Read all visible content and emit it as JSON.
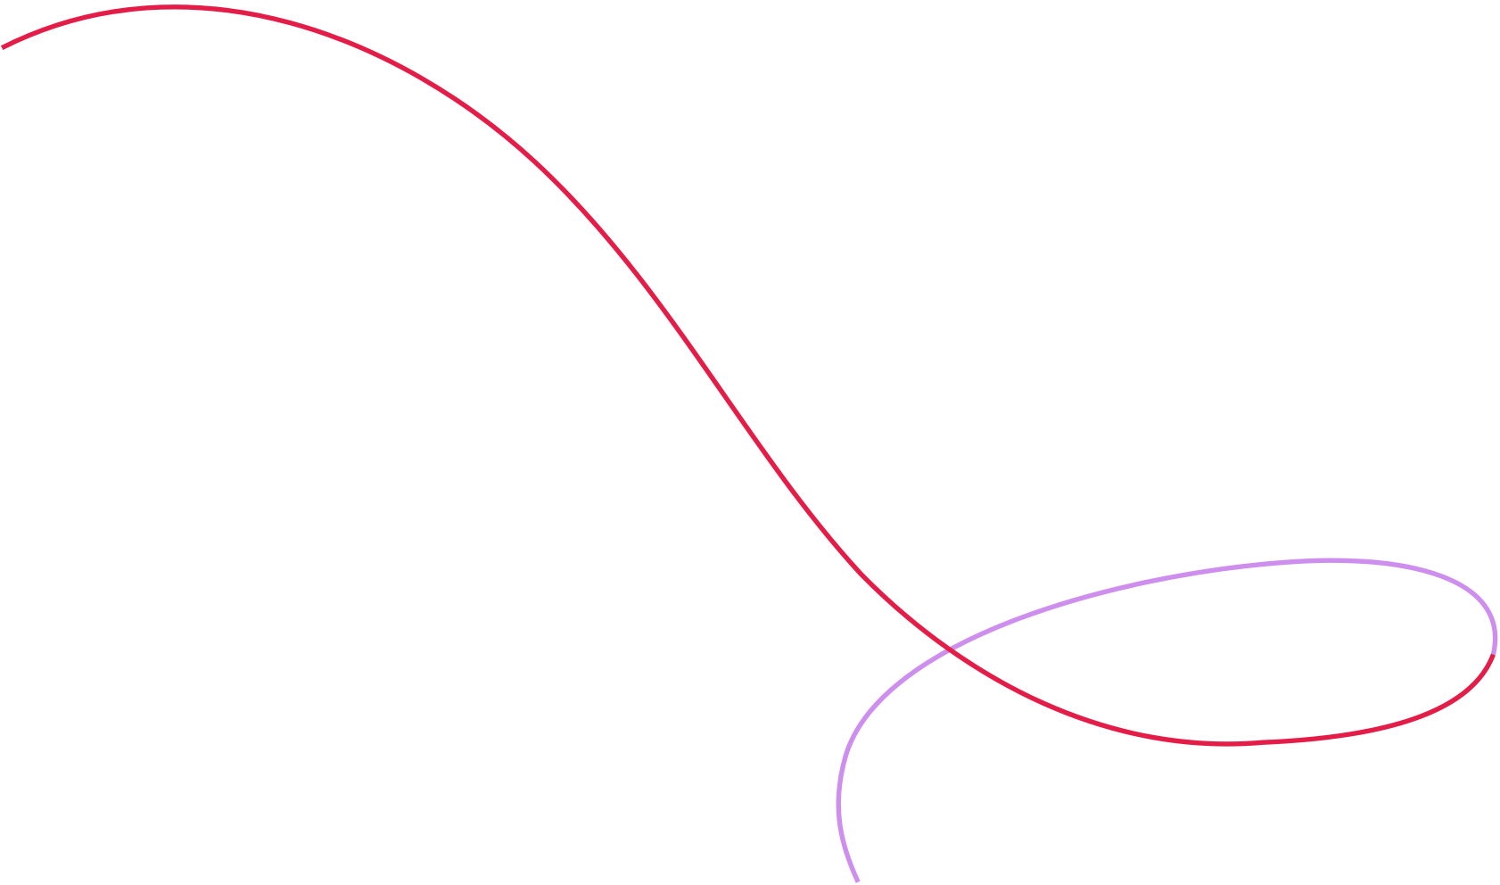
{
  "decoration": {
    "background_color": "#ffffff",
    "curves": [
      {
        "name": "red-curve",
        "color": "#e31d48"
      },
      {
        "name": "lilac-loop",
        "color": "#cd8eee"
      }
    ]
  }
}
